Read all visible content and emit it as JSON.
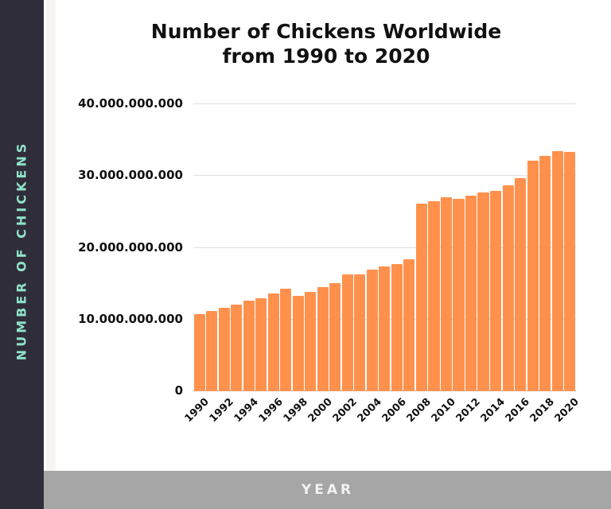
{
  "chart_data": {
    "type": "bar",
    "title": "Number of Chickens Worldwide from 1990 to 2020",
    "title_lines": [
      "Number of Chickens Worldwide",
      "from 1990 to 2020"
    ],
    "xlabel": "YEAR",
    "ylabel": "NUMBER OF CHICKENS",
    "ylim": [
      0,
      40000000000
    ],
    "grid": true,
    "legend": null,
    "y_ticks": [
      "0",
      "10.000.000.000",
      "20.000.000.000",
      "30.000.000.000",
      "40.000.000.000"
    ],
    "x_tick_labels": [
      "1990",
      "1992",
      "1994",
      "1996",
      "1998",
      "2000",
      "2002",
      "2004",
      "2006",
      "2008",
      "2010",
      "2012",
      "2014",
      "2016",
      "2018",
      "2020"
    ],
    "categories": [
      "1990",
      "1991",
      "1992",
      "1993",
      "1994",
      "1995",
      "1996",
      "1997",
      "1998",
      "1999",
      "2000",
      "2001",
      "2002",
      "2003",
      "2004",
      "2005",
      "2006",
      "2007",
      "2008",
      "2009",
      "2010",
      "2011",
      "2012",
      "2013",
      "2014",
      "2015",
      "2016",
      "2017",
      "2018",
      "2019",
      "2020"
    ],
    "values": [
      10600000000,
      11100000000,
      11500000000,
      12000000000,
      12500000000,
      12900000000,
      13500000000,
      14200000000,
      13200000000,
      13700000000,
      14400000000,
      15000000000,
      16200000000,
      16200000000,
      16800000000,
      17300000000,
      17600000000,
      18300000000,
      26000000000,
      26400000000,
      26900000000,
      26700000000,
      27100000000,
      27600000000,
      27800000000,
      28600000000,
      29600000000,
      32000000000,
      32700000000,
      33300000000,
      33200000000
    ],
    "bar_color": "#ff914d"
  },
  "header": {
    "title_line1": "Number of Chickens Worldwide",
    "title_line2": "from 1990 to 2020"
  },
  "axes": {
    "y_label": "NUMBER OF CHICKENS",
    "x_label": "YEAR"
  },
  "colors": {
    "sidebar": "#302d3a",
    "y_label": "#8fe3c8",
    "bottom_bar": "#a6a6a6",
    "x_label": "#f2f2f2",
    "bar": "#ff914d"
  }
}
